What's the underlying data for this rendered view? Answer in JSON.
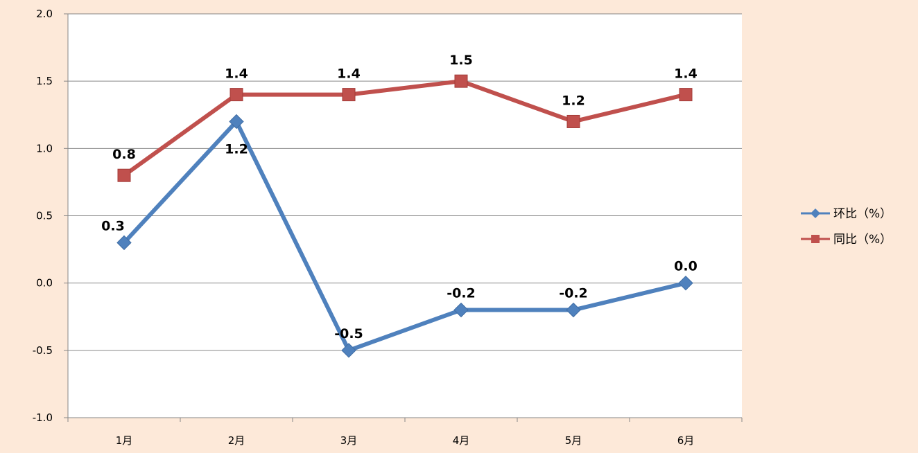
{
  "chart_data": {
    "type": "line",
    "title": "",
    "xlabel": "",
    "ylabel": "",
    "categories": [
      "1月",
      "2月",
      "3月",
      "4月",
      "5月",
      "6月"
    ],
    "ylim": [
      -1.0,
      2.0
    ],
    "yticks": [
      "2.0",
      "1.5",
      "1.0",
      "0.5",
      "0.0",
      "-0.5",
      "-1.0"
    ],
    "grid": true,
    "legend_position": "right",
    "background_color": "#fde9d9",
    "plot_background_color": "#ffffff",
    "series": [
      {
        "name": "环比（%）",
        "values": [
          0.3,
          1.2,
          -0.5,
          -0.2,
          -0.2,
          0.0
        ],
        "labels": [
          "0.3",
          "1.2",
          "-0.5",
          "-0.2",
          "-0.2",
          "0.0"
        ],
        "color": "#4f81bd",
        "marker": "diamond"
      },
      {
        "name": "同比（%）",
        "values": [
          0.8,
          1.4,
          1.4,
          1.5,
          1.2,
          1.4
        ],
        "labels": [
          "0.8",
          "1.4",
          "1.4",
          "1.5",
          "1.2",
          "1.4"
        ],
        "color": "#c0504d",
        "marker": "square"
      }
    ]
  }
}
